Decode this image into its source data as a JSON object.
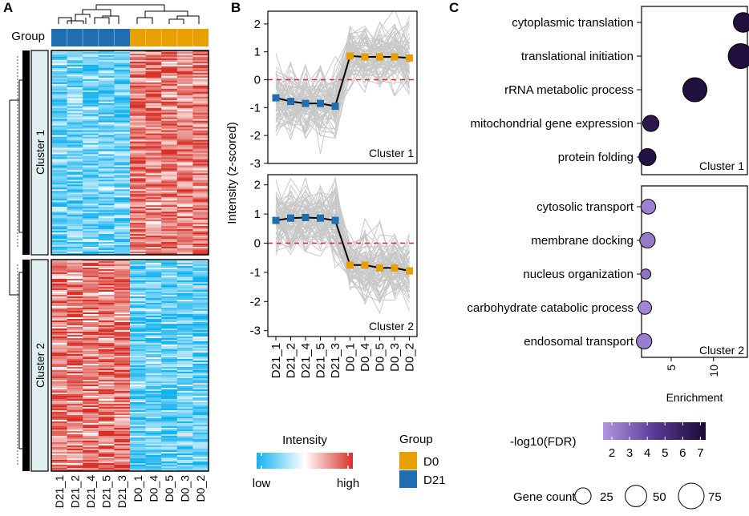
{
  "panels": {
    "a": "A",
    "b": "B",
    "c": "C"
  },
  "colors": {
    "d0": "#e8a000",
    "d21": "#1f6fb0",
    "high": "#d73027",
    "low": "#12b2ef",
    "mid": "#ffffff",
    "cluster_strip": "#e0efef",
    "line_grey": "#c8c8c8",
    "zero_line": "#d62728",
    "fdr_low": "#b296e0",
    "fdr_high": "#1a0a33"
  },
  "chart_data": [
    {
      "panel": "A",
      "type": "heatmap",
      "group_label": "Group",
      "samples": [
        "D21_1",
        "D21_2",
        "D21_4",
        "D21_5",
        "D21_3",
        "D0_1",
        "D0_4",
        "D0_5",
        "D0_3",
        "D0_2"
      ],
      "sample_groups": [
        "D21",
        "D21",
        "D21",
        "D21",
        "D21",
        "D0",
        "D0",
        "D0",
        "D0",
        "D0"
      ],
      "row_clusters": [
        {
          "name": "Cluster 1",
          "D21_pattern": "low",
          "D0_pattern": "high"
        },
        {
          "name": "Cluster 2",
          "D21_pattern": "high",
          "D0_pattern": "low"
        }
      ],
      "legend": {
        "title": "Intensity",
        "low_label": "low",
        "high_label": "high",
        "group_title": "Group",
        "groups": [
          {
            "name": "D0",
            "color": "#e8a000"
          },
          {
            "name": "D21",
            "color": "#1f6fb0"
          }
        ]
      }
    },
    {
      "panel": "B",
      "type": "line",
      "ylabel": "Intensity (z-scored)",
      "ylim": [
        -3,
        2.5
      ],
      "yticks": [
        2,
        1,
        0,
        -1,
        -2,
        -3
      ],
      "categories": [
        "D21_1",
        "D21_2",
        "D21_4",
        "D21_5",
        "D21_3",
        "D0_1",
        "D0_4",
        "D0_5",
        "D0_3",
        "D0_2"
      ],
      "facets": [
        {
          "name": "Cluster 1",
          "mean": [
            -0.65,
            -0.78,
            -0.85,
            -0.85,
            -0.95,
            0.85,
            0.82,
            0.82,
            0.82,
            0.78
          ]
        },
        {
          "name": "Cluster 2",
          "mean": [
            0.78,
            0.86,
            0.88,
            0.86,
            0.78,
            -0.75,
            -0.75,
            -0.85,
            -0.85,
            -0.95
          ]
        }
      ]
    },
    {
      "panel": "C",
      "type": "scatter",
      "xlabel": "Enrichment",
      "xlim": [
        1.5,
        14
      ],
      "xticks": [
        5,
        10
      ],
      "facets": [
        {
          "name": "Cluster 1",
          "terms": [
            {
              "label": "cytoplasmic translation",
              "enrichment": 13.5,
              "fdr": 7.0,
              "count": 40
            },
            {
              "label": "translational initiation",
              "enrichment": 13.2,
              "fdr": 7.0,
              "count": 70
            },
            {
              "label": "rRNA metabolic process",
              "enrichment": 7.8,
              "fdr": 7.0,
              "count": 65
            },
            {
              "label": "mitochondrial gene expression",
              "enrichment": 2.6,
              "fdr": 6.5,
              "count": 25
            },
            {
              "label": "protein folding",
              "enrichment": 2.2,
              "fdr": 6.8,
              "count": 28
            }
          ]
        },
        {
          "name": "Cluster 2",
          "terms": [
            {
              "label": "cytosolic transport",
              "enrichment": 2.3,
              "fdr": 2.2,
              "count": 20
            },
            {
              "label": "membrane docking",
              "enrichment": 2.2,
              "fdr": 2.4,
              "count": 22
            },
            {
              "label": "nucleus organization",
              "enrichment": 2.0,
              "fdr": 2.6,
              "count": 7
            },
            {
              "label": "carbohydrate catabolic process",
              "enrichment": 1.9,
              "fdr": 2.0,
              "count": 15
            },
            {
              "label": "endosomal transport",
              "enrichment": 1.8,
              "fdr": 2.3,
              "count": 22
            }
          ]
        }
      ],
      "color_legend": {
        "title": "-log10(FDR)",
        "ticks": [
          2,
          3,
          4,
          5,
          6,
          7
        ],
        "range": [
          1.5,
          7.3
        ]
      },
      "size_legend": {
        "title": "Gene count",
        "values": [
          25,
          50,
          75
        ]
      }
    }
  ]
}
